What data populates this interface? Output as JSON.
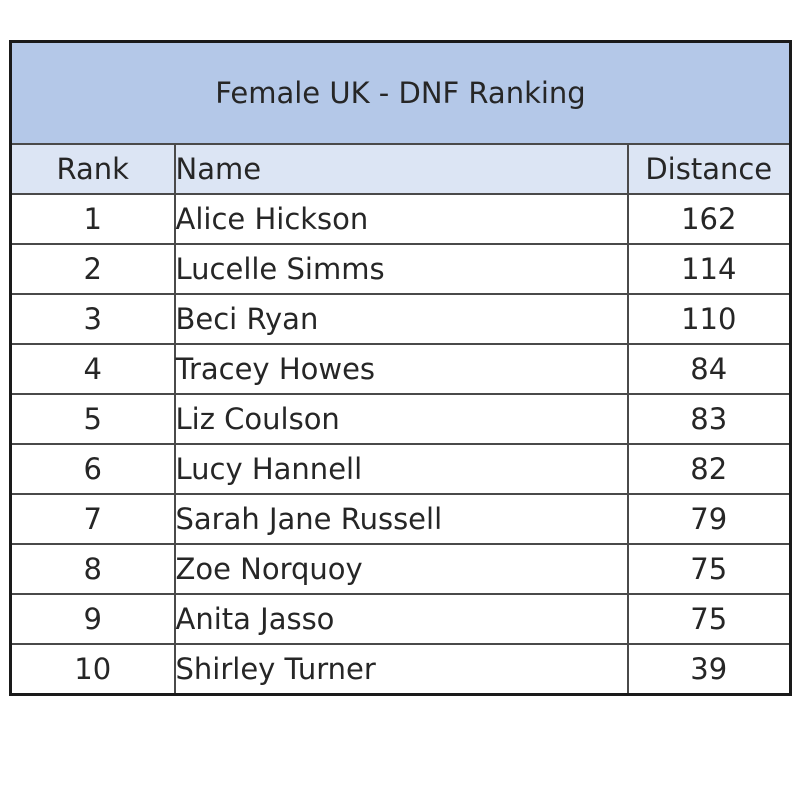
{
  "table": {
    "title": "Female UK - DNF Ranking",
    "headers": {
      "rank": "Rank",
      "name": "Name",
      "distance": "Distance"
    },
    "rows": [
      {
        "rank": "1",
        "name": "Alice Hickson",
        "distance": "162"
      },
      {
        "rank": "2",
        "name": "Lucelle Simms",
        "distance": "114"
      },
      {
        "rank": "3",
        "name": "Beci Ryan",
        "distance": "110"
      },
      {
        "rank": "4",
        "name": "Tracey Howes",
        "distance": "84"
      },
      {
        "rank": "5",
        "name": "Liz Coulson",
        "distance": "83"
      },
      {
        "rank": "6",
        "name": "Lucy Hannell",
        "distance": "82"
      },
      {
        "rank": "7",
        "name": "Sarah Jane Russell",
        "distance": "79"
      },
      {
        "rank": "8",
        "name": "Zoe Norquoy",
        "distance": "75"
      },
      {
        "rank": "9",
        "name": "Anita Jasso",
        "distance": "75"
      },
      {
        "rank": "10",
        "name": "Shirley Turner",
        "distance": "39"
      }
    ]
  },
  "colors": {
    "title_background": "#b4c8e8",
    "header_background": "#dce5f4",
    "border": "#4a4a4a"
  }
}
